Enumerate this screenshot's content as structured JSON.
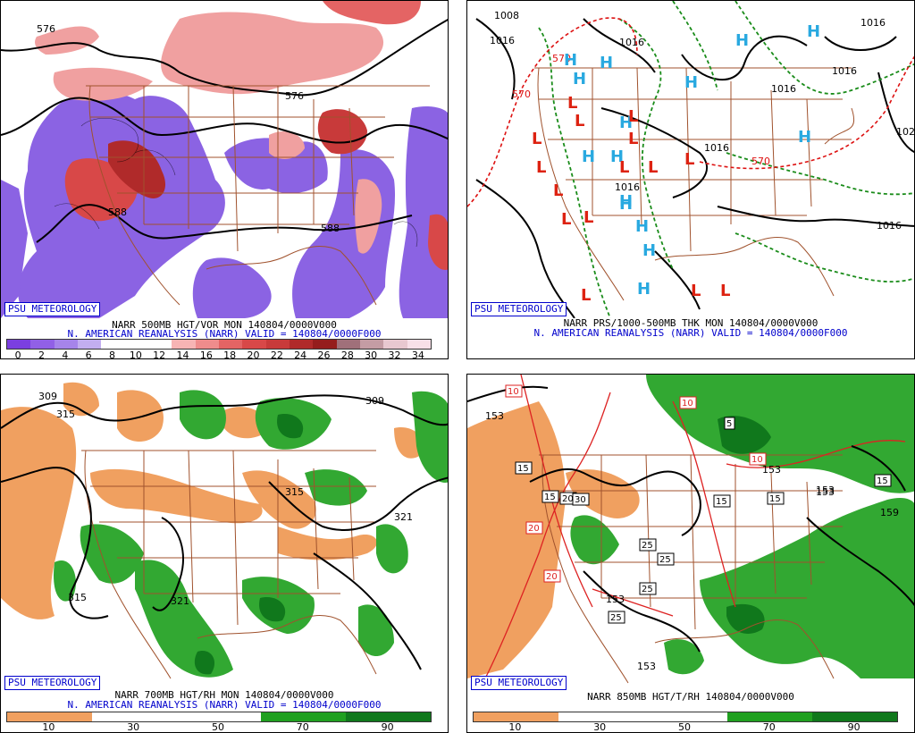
{
  "badge": "PSU METEOROLOGY",
  "panels": {
    "tl": {
      "caption1": "NARR 500MB HGT/VOR MON 140804/0000V000",
      "caption2": "N. AMERICAN REANALYSIS (NARR) VALID = 140804/0000F000",
      "scale_labels": [
        "0",
        "2",
        "4",
        "6",
        "8",
        "10",
        "12",
        "14",
        "16",
        "18",
        "20",
        "22",
        "24",
        "26",
        "28",
        "30",
        "32",
        "34"
      ],
      "contour_labels": [
        "576",
        "576",
        "588",
        "588"
      ]
    },
    "tr": {
      "caption1": "NARR PRS/1000-500MB THK MON 140804/0000V000",
      "caption2": "N. AMERICAN REANALYSIS (NARR) VALID = 140804/0000F000",
      "contour_labels": [
        "1008",
        "1016",
        "1016",
        "1016",
        "1016",
        "1016",
        "1016",
        "1016",
        "1016",
        "102",
        "570",
        "570",
        "570"
      ],
      "high_letter": "H",
      "low_letter": "L"
    },
    "bl": {
      "caption1": "NARR 700MB HGT/RH MON 140804/0000V000",
      "caption2": "N. AMERICAN REANALYSIS (NARR) VALID = 140804/0000F000",
      "scale_labels": [
        "10",
        "30",
        "50",
        "70",
        "90"
      ],
      "contour_labels": [
        "309",
        "315",
        "309",
        "315",
        "321",
        "315",
        "321"
      ]
    },
    "br": {
      "caption1": "NARR 850MB HGT/T/RH 140804/0000V000",
      "scale_labels": [
        "10",
        "30",
        "50",
        "70",
        "90"
      ],
      "contour_labels": [
        "153",
        "153",
        "153",
        "153",
        "153",
        "159",
        "153",
        "153"
      ],
      "temp_labels": [
        "10",
        "10",
        "10",
        "15",
        "15",
        "15",
        "15",
        "20",
        "20",
        "20",
        "25",
        "25",
        "25",
        "25",
        "30",
        "5",
        "15"
      ]
    }
  },
  "colors": {
    "vort_scale": [
      "#7b3fe0",
      "#9160e6",
      "#a684ea",
      "#c2aef0",
      "#ffffff",
      "#ffffff",
      "#ffffff",
      "#f7b4b4",
      "#ef8c8c",
      "#e46464",
      "#d84848",
      "#c83a3a",
      "#b02a2a",
      "#951d1d",
      "#a0707a",
      "#c49ca4",
      "#e8c8d0",
      "#f8e0e8"
    ],
    "rh_scale": [
      "#f0a060",
      "#ffffff",
      "#ffffff",
      "#20a020",
      "#10781c"
    ],
    "border": "#a0522d",
    "high": "#29a9e0",
    "low": "#dd2211"
  }
}
